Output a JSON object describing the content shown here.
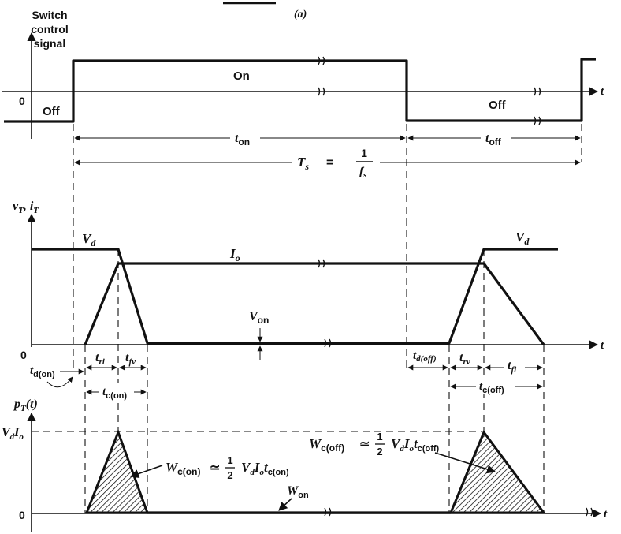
{
  "figure_label": "(a)",
  "top_panel": {
    "ylabel_line1": "Switch",
    "ylabel_line2": "control",
    "ylabel_line3": "signal",
    "zero": "0",
    "off_left": "Off",
    "on": "On",
    "off_right": "Off",
    "t_axis": "t",
    "t_on_main": "t",
    "t_on_sub": "on",
    "t_off_main": "t",
    "t_off_sub": "off",
    "period_lhs": "T",
    "period_lhs_sub": "s",
    "period_eq": "=",
    "period_num": "1",
    "period_den": "f",
    "period_den_sub": "s"
  },
  "middle_panel": {
    "ylabel": "v",
    "ylabel_sub1": "T",
    "ylabel_sep": ", i",
    "ylabel_sub2": "T",
    "zero": "0",
    "vd_left": "V",
    "vd_left_sub": "d",
    "vd_right": "V",
    "vd_right_sub": "d",
    "io": "I",
    "io_sub": "o",
    "von": "V",
    "von_sub": "on",
    "t_axis": "t",
    "tri": "t",
    "tri_sub": "ri",
    "tfv": "t",
    "tfv_sub": "fv",
    "td_off": "t",
    "td_off_sub": "d(off)",
    "trv": "t",
    "trv_sub": "rv",
    "tfi": "t",
    "tfi_sub": "fi",
    "td_on": "t",
    "td_on_sub": "d(on)",
    "tc_on": "t",
    "tc_on_sub": "c(on)",
    "tc_off": "t",
    "tc_off_sub": "c(off)"
  },
  "bottom_panel": {
    "ylabel": "p",
    "ylabel_sub": "T",
    "ylabel_arg": "(t)",
    "vdio": "V",
    "vdio_sub1": "d",
    "vdio_mid": "I",
    "vdio_sub2": "o",
    "zero": "0",
    "t_axis": "t",
    "wc_on": "W",
    "wc_on_sub": "c(on)",
    "approx": "≃",
    "half_num": "1",
    "half_den": "2",
    "wc_on_rhs": "V",
    "wc_on_rhs_s1": "d",
    "wc_on_rhs_i": "I",
    "wc_on_rhs_s2": "o",
    "wc_on_rhs_t": "t",
    "wc_on_rhs_s3": "c(on)",
    "wc_off": "W",
    "wc_off_sub": "c(off)",
    "wc_off_rhs_t_sub": "c(off)",
    "won": "W",
    "won_sub": "on"
  }
}
